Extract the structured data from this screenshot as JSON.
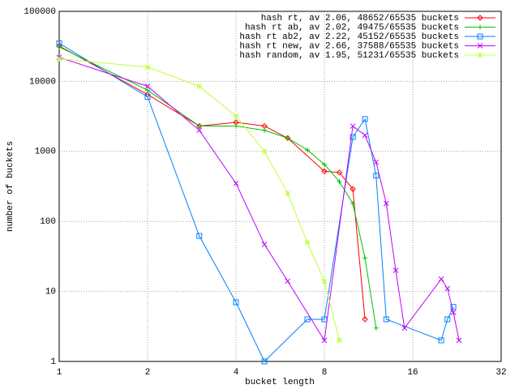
{
  "chart_data": {
    "type": "line",
    "xlabel": "bucket length",
    "ylabel": "number of buckets",
    "xlog": true,
    "ylog": true,
    "grid": true,
    "legend": "top-right",
    "xlim": [
      1,
      32
    ],
    "xticks": [
      1,
      2,
      4,
      8,
      16,
      32
    ],
    "ylim": [
      1,
      100000
    ],
    "yticks": [
      1,
      10,
      100,
      1000,
      10000,
      100000
    ],
    "series": [
      {
        "name": "hash rt, av 2.06, 48652/65535 buckets",
        "color": "#ff0000",
        "x": [
          1,
          2,
          3,
          4,
          5,
          6,
          8,
          9,
          10,
          11
        ],
        "values": [
          32000,
          6500,
          2300,
          2600,
          2300,
          1550,
          520,
          500,
          290,
          4
        ]
      },
      {
        "name": "hash rt ab, av 2.02, 49475/65535 buckets",
        "color": "#00c000",
        "x": [
          1,
          2,
          3,
          4,
          5,
          6,
          7,
          8,
          9,
          10,
          11,
          12
        ],
        "values": [
          31000,
          7500,
          2300,
          2300,
          2000,
          1550,
          1050,
          650,
          370,
          180,
          30,
          3
        ]
      },
      {
        "name": "hash rt ab2, av 2.22, 45152/65535 buckets",
        "color": "#0080ff",
        "x": [
          1,
          2,
          3,
          4,
          5,
          7,
          8,
          10,
          11,
          12,
          13,
          20,
          21,
          22
        ],
        "values": [
          35000,
          6000,
          62,
          7,
          1,
          4,
          4,
          1600,
          2900,
          450,
          4,
          2,
          4,
          6
        ]
      },
      {
        "name": "hash rt new, av 2.66, 37588/65535 buckets",
        "color": "#c000ff",
        "x": [
          1,
          2,
          3,
          4,
          5,
          6,
          8,
          10,
          11,
          12,
          13,
          14,
          15,
          20,
          21,
          22,
          23
        ],
        "values": [
          22000,
          8500,
          2000,
          350,
          47,
          14,
          2,
          2300,
          1700,
          700,
          180,
          20,
          3,
          15,
          11,
          5,
          2
        ]
      },
      {
        "name": "hash random, av 1.95, 51231/65535 buckets",
        "color": "#c0ff40",
        "x": [
          1,
          2,
          3,
          4,
          5,
          6,
          7,
          8,
          9
        ],
        "values": [
          21000,
          16000,
          8500,
          3200,
          1000,
          250,
          50,
          14,
          2
        ]
      }
    ]
  }
}
